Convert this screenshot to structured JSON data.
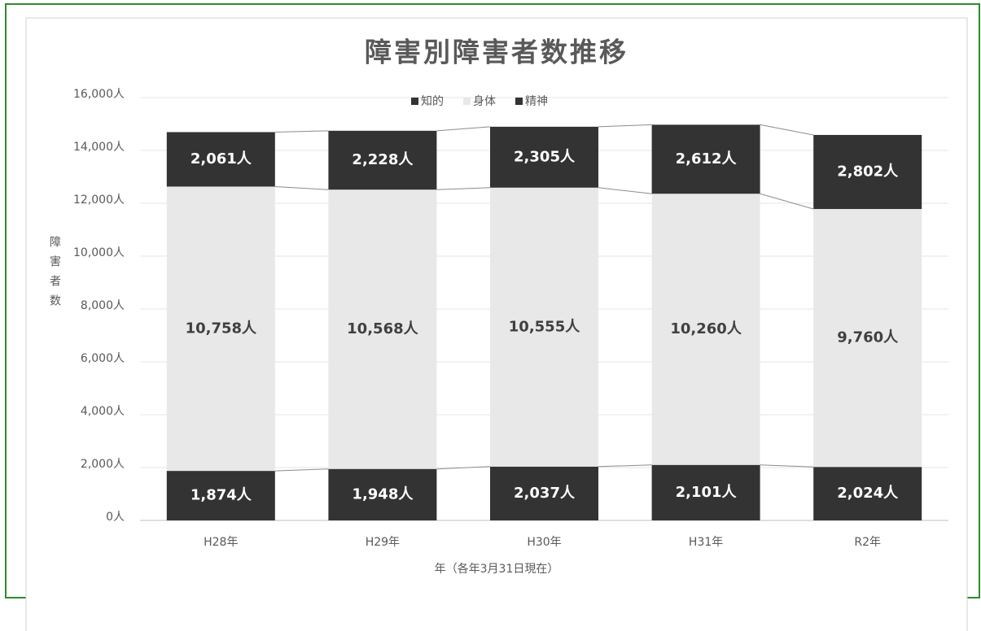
{
  "chart_data": {
    "type": "stacked_bar",
    "title": "障害別障害者数推移",
    "y_label": "障害者数",
    "x_label": "年（各年3月31日現在）",
    "categories": [
      "H28年",
      "H29年",
      "H30年",
      "H31年",
      "R2年"
    ],
    "series": [
      {
        "name": "知的",
        "color": "#333333",
        "values": [
          1874,
          1948,
          2037,
          2101,
          2024
        ],
        "value_labels": [
          "1,874人",
          "1,948人",
          "2,037人",
          "2,101人",
          "2,024人"
        ]
      },
      {
        "name": "身体",
        "color": "#e8e8e8",
        "values": [
          10758,
          10568,
          10555,
          10260,
          9760
        ],
        "value_labels": [
          "10,758人",
          "10,568人",
          "10,555人",
          "10,260人",
          "9,760人"
        ]
      },
      {
        "name": "精神",
        "color": "#333333",
        "values": [
          2061,
          2228,
          2305,
          2612,
          2802
        ],
        "value_labels": [
          "2,061人",
          "2,228人",
          "2,305人",
          "2,612人",
          "2,802人"
        ]
      }
    ],
    "ylim": [
      0,
      16000
    ],
    "yticks": [
      {
        "value": 0,
        "label": "0人"
      },
      {
        "value": 2000,
        "label": "2,000人"
      },
      {
        "value": 4000,
        "label": "4,000人"
      },
      {
        "value": 6000,
        "label": "6,000人"
      },
      {
        "value": 8000,
        "label": "8,000人"
      },
      {
        "value": 10000,
        "label": "10,000人"
      },
      {
        "value": 12000,
        "label": "12,000人"
      },
      {
        "value": 14000,
        "label": "14,000人"
      },
      {
        "value": 16000,
        "label": "16,000人"
      }
    ],
    "grid": true,
    "legend": "top"
  }
}
